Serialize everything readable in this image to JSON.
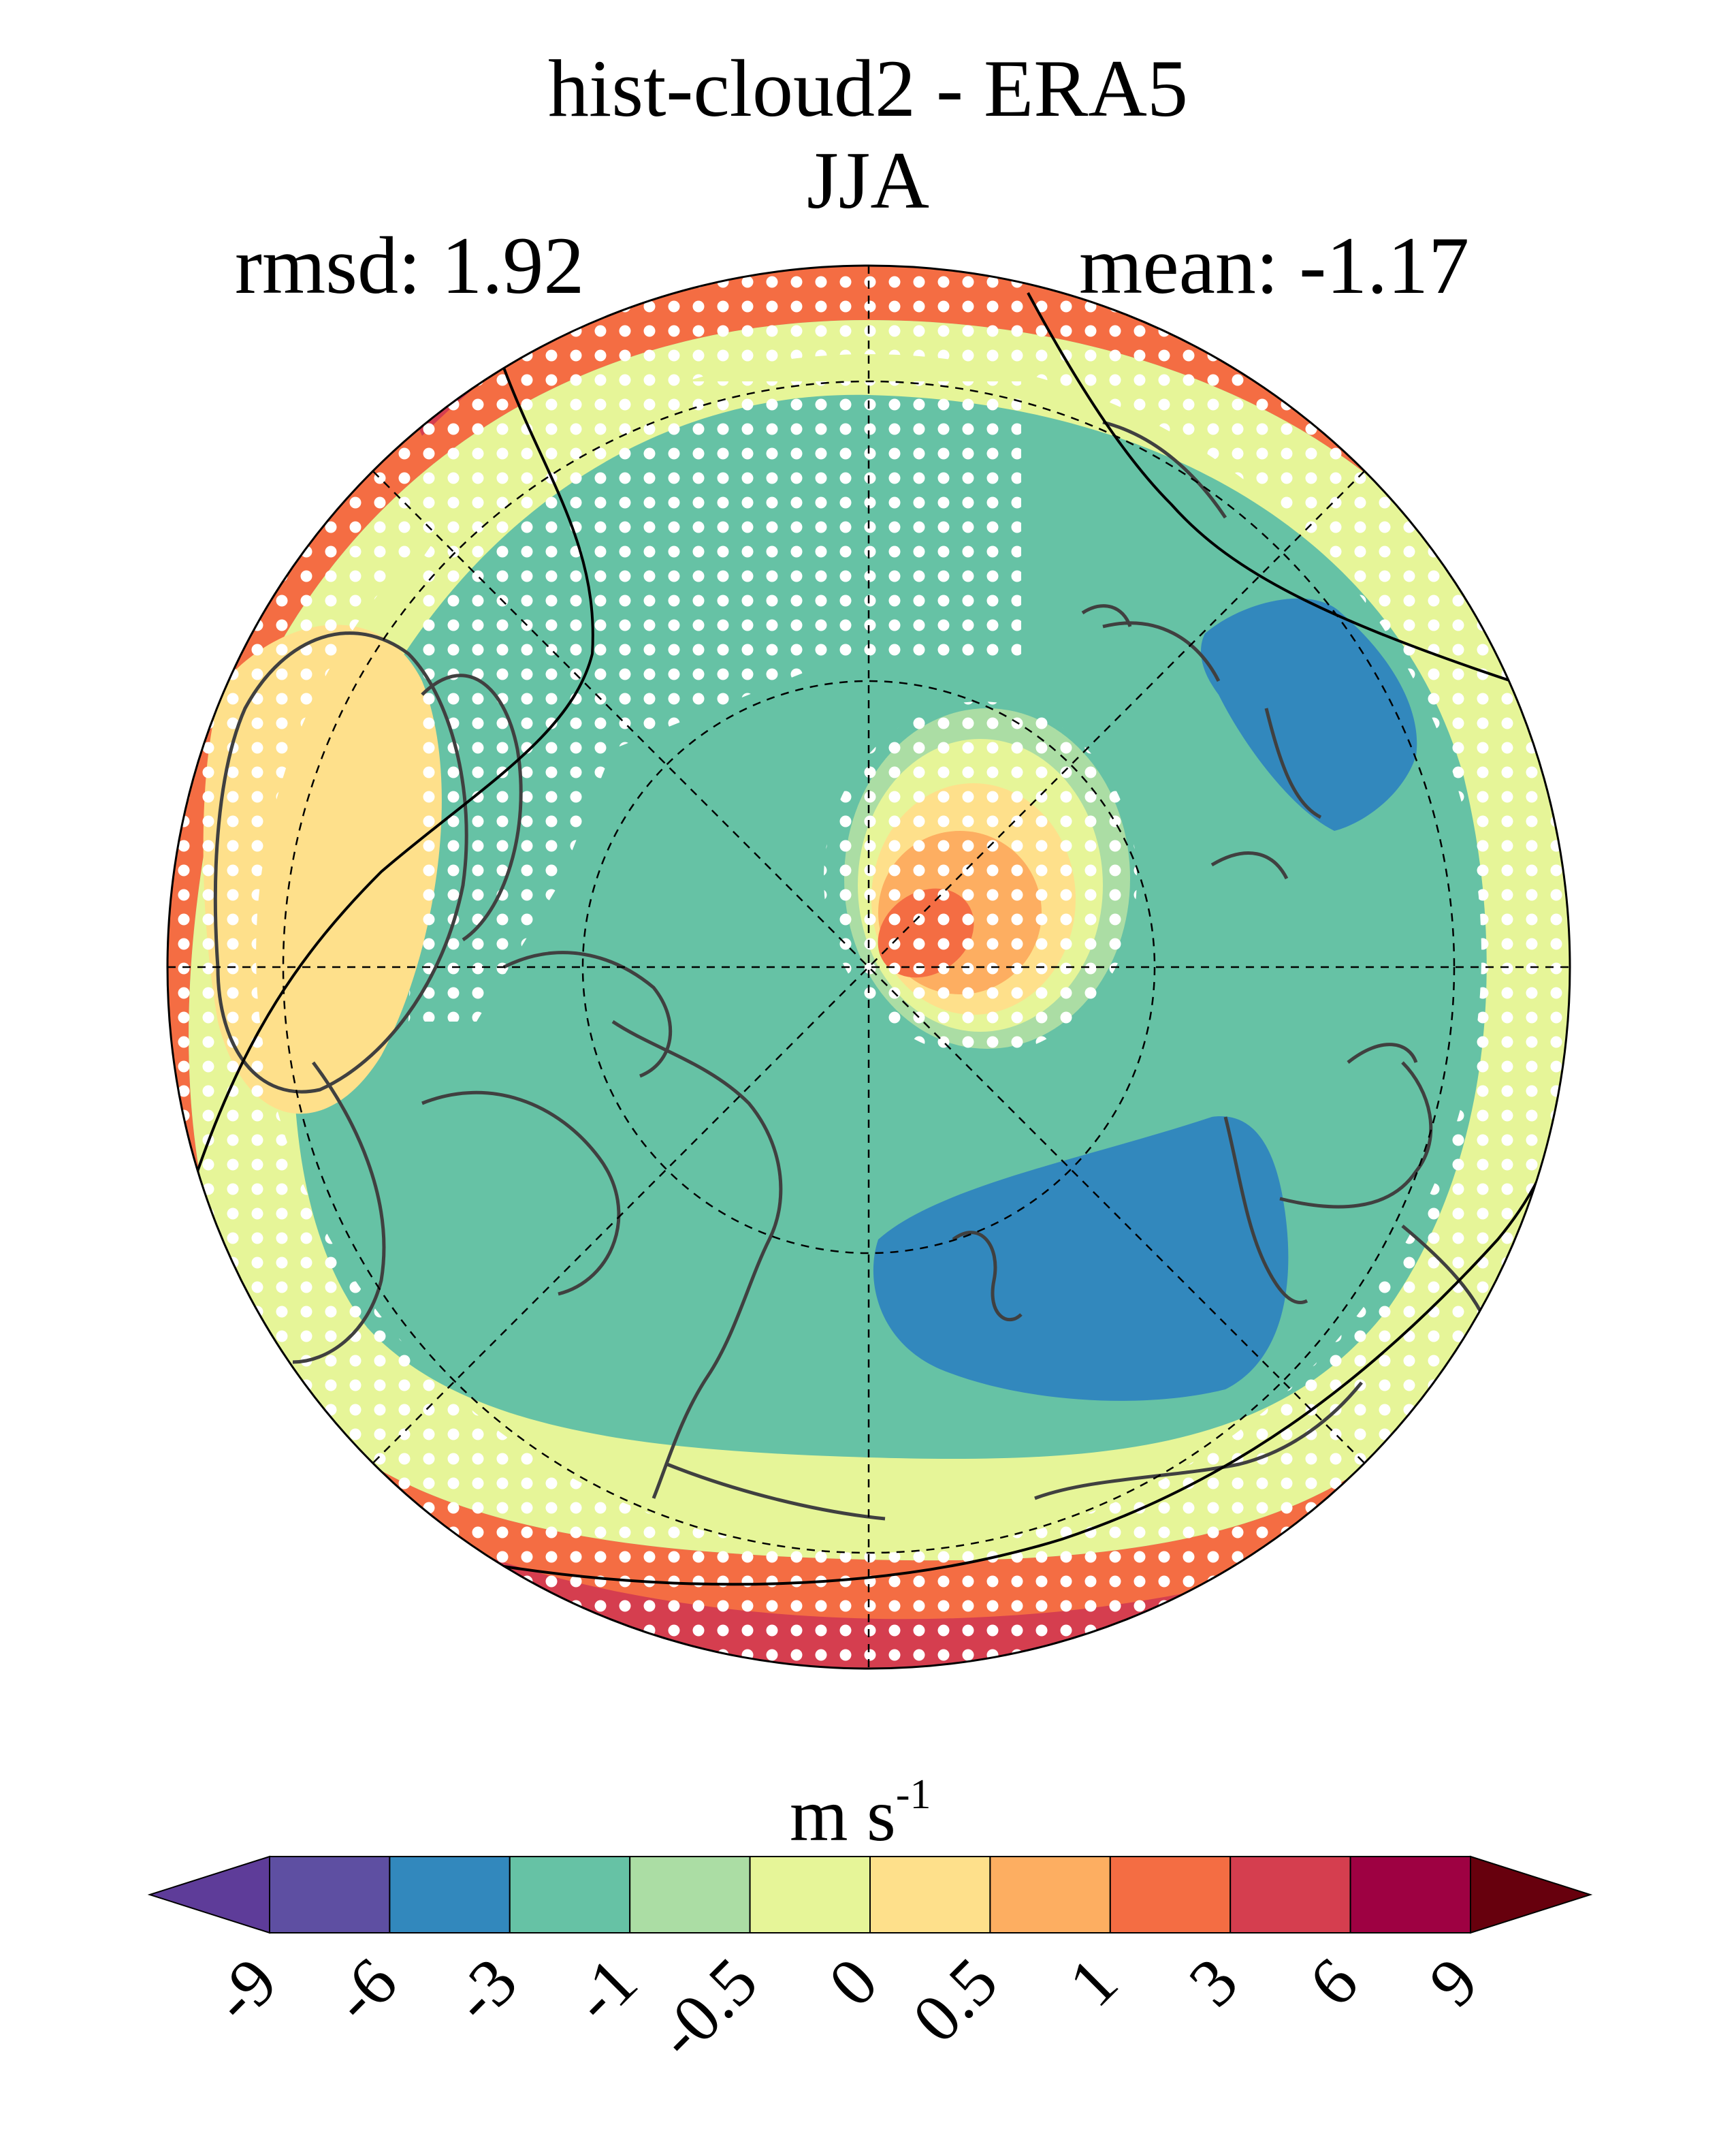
{
  "title": "hist-cloud2 - ERA5",
  "season": "JJA",
  "stats": {
    "rmsd_label": "rmsd: 1.92",
    "mean_label": "mean: -1.17"
  },
  "colorbar": {
    "units": "m s",
    "units_exponent": "-1",
    "ticks": [
      "-9",
      "-6",
      "-3",
      "-1",
      "-0.5",
      "0",
      "0.5",
      "1",
      "3",
      "6",
      "9"
    ],
    "under_color": "#5e3c99",
    "over_color": "#67000d",
    "bins": [
      {
        "from": -9,
        "to": -6,
        "color": "#5e4fa2"
      },
      {
        "from": -6,
        "to": -3,
        "color": "#3288bd"
      },
      {
        "from": -3,
        "to": -1,
        "color": "#66c2a5"
      },
      {
        "from": -1,
        "to": -0.5,
        "color": "#abdda4"
      },
      {
        "from": -0.5,
        "to": 0,
        "color": "#e6f598"
      },
      {
        "from": 0,
        "to": 0.5,
        "color": "#fee08b"
      },
      {
        "from": 0.5,
        "to": 1,
        "color": "#fdae61"
      },
      {
        "from": 1,
        "to": 3,
        "color": "#f46d43"
      },
      {
        "from": 3,
        "to": 6,
        "color": "#d53e4f"
      },
      {
        "from": 6,
        "to": 9,
        "color": "#9e0142"
      }
    ]
  },
  "map": {
    "projection": "north polar stereographic",
    "variable": "wind speed difference",
    "regions": [
      {
        "name": "background",
        "level": "-3 to -1"
      },
      {
        "name": "outer ring",
        "level": "1 to 3"
      },
      {
        "name": "outer band",
        "level": "-0.5 to 0"
      },
      {
        "name": "positive anomaly near pole",
        "level": "1 to 3"
      },
      {
        "name": "negative anomaly north Atlantic",
        "level": "-6 to -3"
      },
      {
        "name": "negative anomaly Hudson Bay",
        "level": "-6 to -3"
      }
    ],
    "stippling": "white dots mark significant differences"
  }
}
